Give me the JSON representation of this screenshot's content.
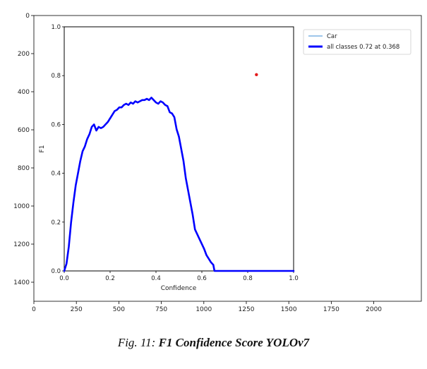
{
  "caption": {
    "prefix": "Fig. 11:",
    "title": "F1 Confidence Score YOLOv7"
  },
  "chart_data": [
    {
      "type": "image-axes",
      "x_ticks": [
        "0",
        "250",
        "500",
        "750",
        "1000",
        "1250",
        "1500",
        "1750",
        "2000"
      ],
      "y_ticks": [
        "0",
        "200",
        "400",
        "600",
        "800",
        "1000",
        "1200",
        "1400"
      ],
      "xlim": [
        0,
        2280
      ],
      "ylim": [
        1500,
        0
      ]
    },
    {
      "type": "line",
      "xlabel": "Confidence",
      "ylabel": "F1",
      "xlim": [
        0,
        1
      ],
      "ylim": [
        0,
        1
      ],
      "x_ticks": [
        "0.0",
        "0.2",
        "0.4",
        "0.6",
        "0.8",
        "1.0"
      ],
      "y_ticks": [
        "0.0",
        "0.2",
        "0.4",
        "0.6",
        "0.8",
        "1.0"
      ],
      "legend_position": "outside-right",
      "series": [
        {
          "name": "Car",
          "color": "#7fb3e3",
          "points": []
        },
        {
          "name": "all classes 0.72 at 0.368",
          "color": "#0000ff",
          "points": [
            [
              0.0,
              0.0
            ],
            [
              0.01,
              0.03
            ],
            [
              0.02,
              0.1
            ],
            [
              0.03,
              0.2
            ],
            [
              0.04,
              0.28
            ],
            [
              0.05,
              0.35
            ],
            [
              0.06,
              0.4
            ],
            [
              0.07,
              0.45
            ],
            [
              0.08,
              0.49
            ],
            [
              0.09,
              0.51
            ],
            [
              0.1,
              0.54
            ],
            [
              0.11,
              0.56
            ],
            [
              0.12,
              0.59
            ],
            [
              0.13,
              0.6
            ],
            [
              0.14,
              0.575
            ],
            [
              0.15,
              0.59
            ],
            [
              0.16,
              0.585
            ],
            [
              0.17,
              0.59
            ],
            [
              0.18,
              0.6
            ],
            [
              0.19,
              0.61
            ],
            [
              0.2,
              0.625
            ],
            [
              0.21,
              0.64
            ],
            [
              0.22,
              0.655
            ],
            [
              0.23,
              0.66
            ],
            [
              0.24,
              0.67
            ],
            [
              0.25,
              0.67
            ],
            [
              0.26,
              0.68
            ],
            [
              0.27,
              0.685
            ],
            [
              0.28,
              0.68
            ],
            [
              0.29,
              0.69
            ],
            [
              0.3,
              0.685
            ],
            [
              0.31,
              0.695
            ],
            [
              0.32,
              0.69
            ],
            [
              0.33,
              0.695
            ],
            [
              0.34,
              0.7
            ],
            [
              0.35,
              0.7
            ],
            [
              0.36,
              0.705
            ],
            [
              0.37,
              0.7
            ],
            [
              0.38,
              0.71
            ],
            [
              0.39,
              0.7
            ],
            [
              0.4,
              0.69
            ],
            [
              0.41,
              0.685
            ],
            [
              0.42,
              0.695
            ],
            [
              0.43,
              0.69
            ],
            [
              0.44,
              0.68
            ],
            [
              0.45,
              0.675
            ],
            [
              0.46,
              0.65
            ],
            [
              0.47,
              0.645
            ],
            [
              0.48,
              0.63
            ],
            [
              0.49,
              0.58
            ],
            [
              0.5,
              0.55
            ],
            [
              0.51,
              0.5
            ],
            [
              0.52,
              0.45
            ],
            [
              0.53,
              0.38
            ],
            [
              0.54,
              0.33
            ],
            [
              0.55,
              0.28
            ],
            [
              0.56,
              0.23
            ],
            [
              0.57,
              0.17
            ],
            [
              0.58,
              0.15
            ],
            [
              0.59,
              0.13
            ],
            [
              0.6,
              0.11
            ],
            [
              0.61,
              0.09
            ],
            [
              0.62,
              0.065
            ],
            [
              0.63,
              0.05
            ],
            [
              0.64,
              0.035
            ],
            [
              0.65,
              0.025
            ],
            [
              0.655,
              0.0
            ],
            [
              0.7,
              0.0
            ],
            [
              0.8,
              0.0
            ],
            [
              0.9,
              0.0
            ],
            [
              1.0,
              0.0
            ]
          ]
        }
      ],
      "marker": {
        "x": 0.838,
        "y": 0.804,
        "color": "#e31a1c"
      }
    }
  ]
}
